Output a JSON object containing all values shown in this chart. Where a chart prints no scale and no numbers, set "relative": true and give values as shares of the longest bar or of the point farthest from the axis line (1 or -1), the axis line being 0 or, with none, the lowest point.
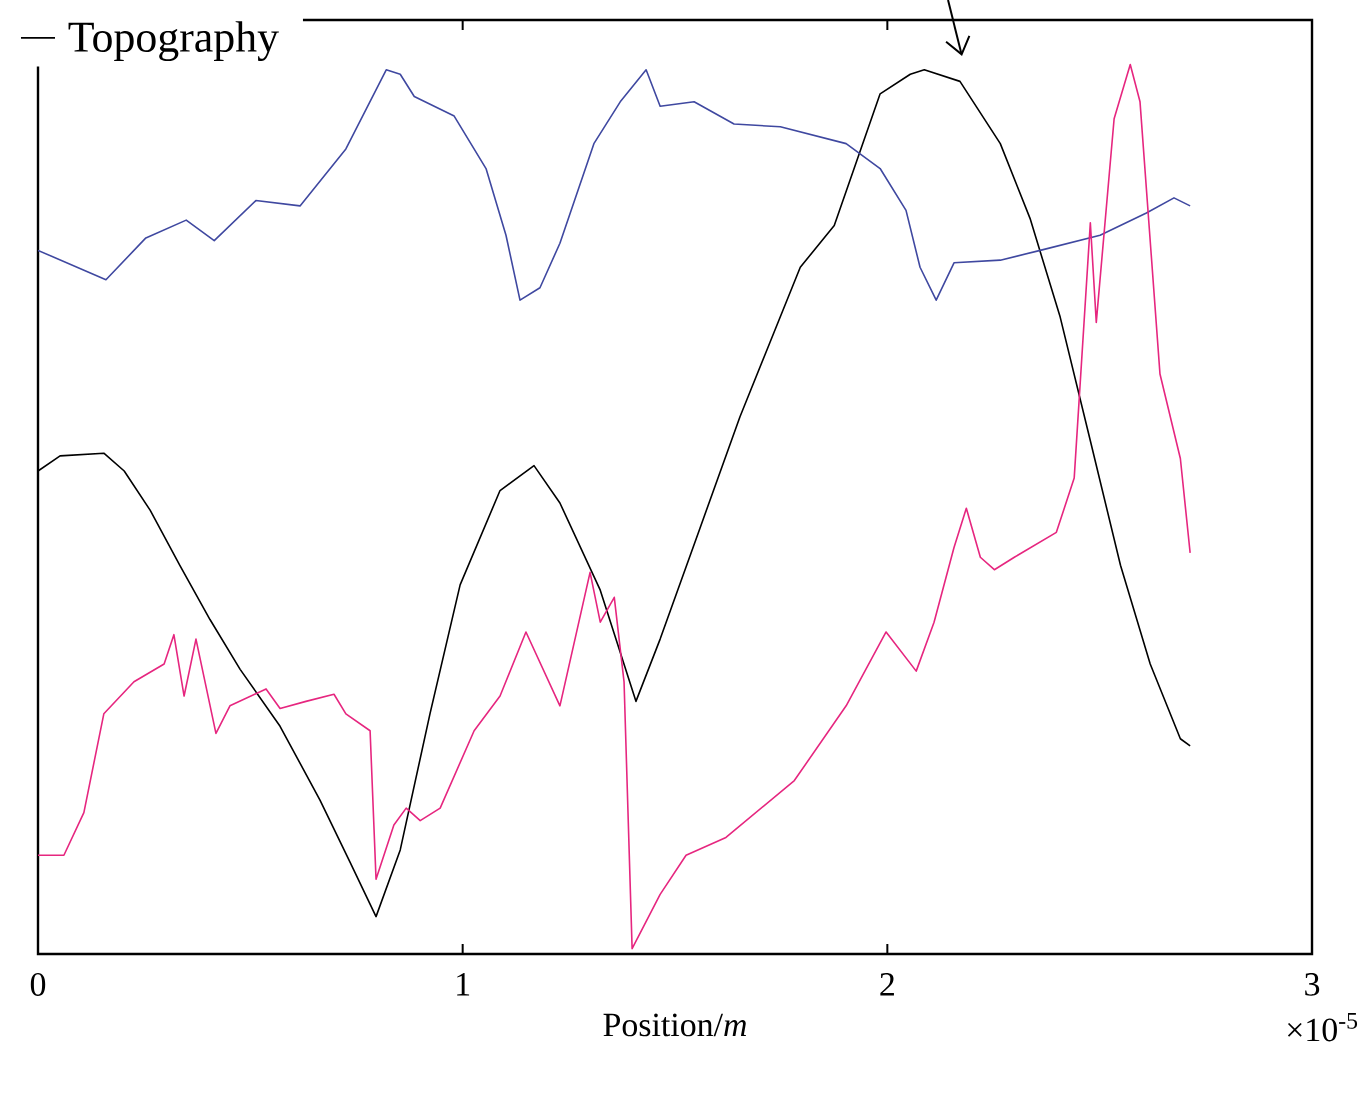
{
  "chart_data": {
    "type": "line",
    "relative": true,
    "xlabel": "Position/*m*",
    "annotations": [
      "×10$^{-5}$"
    ],
    "xlim": [
      0,
      3
    ],
    "xticks": [
      0,
      1,
      2,
      3
    ],
    "legend": "top left",
    "grid": false,
    "series": [
      {
        "name": "Topography",
        "color": "#000000",
        "x": [
          0,
          0.052,
          0.155,
          0.203,
          0.264,
          0.334,
          0.405,
          0.476,
          0.57,
          0.664,
          0.735,
          0.796,
          0.853,
          0.923,
          0.994,
          1.088,
          1.168,
          1.229,
          1.324,
          1.408,
          1.465,
          1.559,
          1.653,
          1.724,
          1.795,
          1.875,
          1.983,
          2.054,
          2.087,
          2.171,
          2.266,
          2.336,
          2.407,
          2.478,
          2.549,
          2.619,
          2.69,
          2.713
        ],
        "values": [
          0.543,
          0.56,
          0.563,
          0.543,
          0.499,
          0.437,
          0.376,
          0.32,
          0.256,
          0.173,
          0.103,
          0.042,
          0.117,
          0.27,
          0.415,
          0.521,
          0.549,
          0.507,
          0.409,
          0.284,
          0.354,
          0.479,
          0.604,
          0.688,
          0.772,
          0.819,
          0.967,
          0.989,
          0.994,
          0.981,
          0.911,
          0.827,
          0.716,
          0.577,
          0.437,
          0.326,
          0.242,
          0.234
        ]
      },
      {
        "color": "#3f48a0",
        "x": [
          0,
          0.16,
          0.254,
          0.349,
          0.415,
          0.513,
          0.617,
          0.725,
          0.82,
          0.853,
          0.886,
          0.98,
          1.055,
          1.102,
          1.135,
          1.182,
          1.229,
          1.309,
          1.371,
          1.432,
          1.465,
          1.545,
          1.639,
          1.748,
          1.903,
          1.983,
          2.044,
          2.077,
          2.115,
          2.157,
          2.266,
          2.36,
          2.501,
          2.61,
          2.675,
          2.713
        ],
        "values": [
          0.791,
          0.758,
          0.805,
          0.825,
          0.802,
          0.847,
          0.841,
          0.905,
          0.994,
          0.989,
          0.964,
          0.942,
          0.883,
          0.808,
          0.735,
          0.749,
          0.799,
          0.911,
          0.958,
          0.994,
          0.953,
          0.958,
          0.933,
          0.93,
          0.911,
          0.883,
          0.836,
          0.772,
          0.735,
          0.777,
          0.78,
          0.791,
          0.808,
          0.833,
          0.85,
          0.841
        ]
      },
      {
        "color": "#e6267f",
        "x": [
          0,
          0.061,
          0.108,
          0.155,
          0.226,
          0.297,
          0.32,
          0.344,
          0.372,
          0.419,
          0.452,
          0.537,
          0.57,
          0.631,
          0.697,
          0.725,
          0.782,
          0.796,
          0.838,
          0.867,
          0.9,
          0.947,
          1.027,
          1.088,
          1.149,
          1.229,
          1.3,
          1.324,
          1.357,
          1.38,
          1.399,
          1.465,
          1.526,
          1.62,
          1.781,
          1.903,
          1.997,
          2.068,
          2.11,
          2.157,
          2.186,
          2.219,
          2.252,
          2.299,
          2.398,
          2.44,
          2.478,
          2.492,
          2.534,
          2.572,
          2.595,
          2.642,
          2.69,
          2.713
        ],
        "values": [
          0.111,
          0.111,
          0.159,
          0.27,
          0.306,
          0.326,
          0.359,
          0.29,
          0.354,
          0.248,
          0.279,
          0.298,
          0.276,
          0.284,
          0.292,
          0.27,
          0.251,
          0.084,
          0.145,
          0.164,
          0.15,
          0.164,
          0.251,
          0.29,
          0.362,
          0.279,
          0.429,
          0.373,
          0.401,
          0.306,
          0.006,
          0.067,
          0.111,
          0.131,
          0.195,
          0.279,
          0.362,
          0.318,
          0.373,
          0.457,
          0.501,
          0.446,
          0.432,
          0.446,
          0.474,
          0.535,
          0.822,
          0.71,
          0.939,
          1.0,
          0.958,
          0.652,
          0.557,
          0.451
        ]
      }
    ]
  }
}
